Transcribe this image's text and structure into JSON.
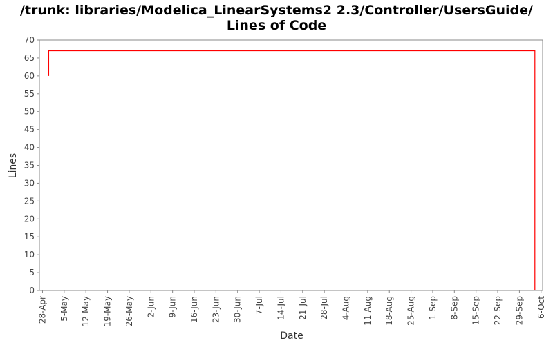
{
  "chart_data": {
    "type": "line",
    "title": "/trunk: libraries/Modelica_LinearSystems2 2.3/Controller/UsersGuide/",
    "subtitle": "Lines of Code",
    "xlabel": "Date",
    "ylabel": "Lines",
    "ylim": [
      0,
      70
    ],
    "xlim": [
      "27-Apr",
      "6-Oct"
    ],
    "yticks": [
      0,
      5,
      10,
      15,
      20,
      25,
      30,
      35,
      40,
      45,
      50,
      55,
      60,
      65,
      70
    ],
    "xticks": [
      "28-Apr",
      "5-May",
      "12-May",
      "19-May",
      "26-May",
      "2-Jun",
      "9-Jun",
      "16-Jun",
      "23-Jun",
      "30-Jun",
      "7-Jul",
      "14-Jul",
      "21-Jul",
      "28-Jul",
      "4-Aug",
      "11-Aug",
      "18-Aug",
      "25-Aug",
      "1-Sep",
      "8-Sep",
      "15-Sep",
      "22-Sep",
      "29-Sep",
      "6-Oct"
    ],
    "grid": false,
    "series": [
      {
        "color": "#ff0000",
        "points": [
          [
            "30-Apr",
            60
          ],
          [
            "30-Apr",
            67
          ],
          [
            "4-Oct",
            67
          ],
          [
            "4-Oct",
            0
          ]
        ]
      }
    ]
  }
}
